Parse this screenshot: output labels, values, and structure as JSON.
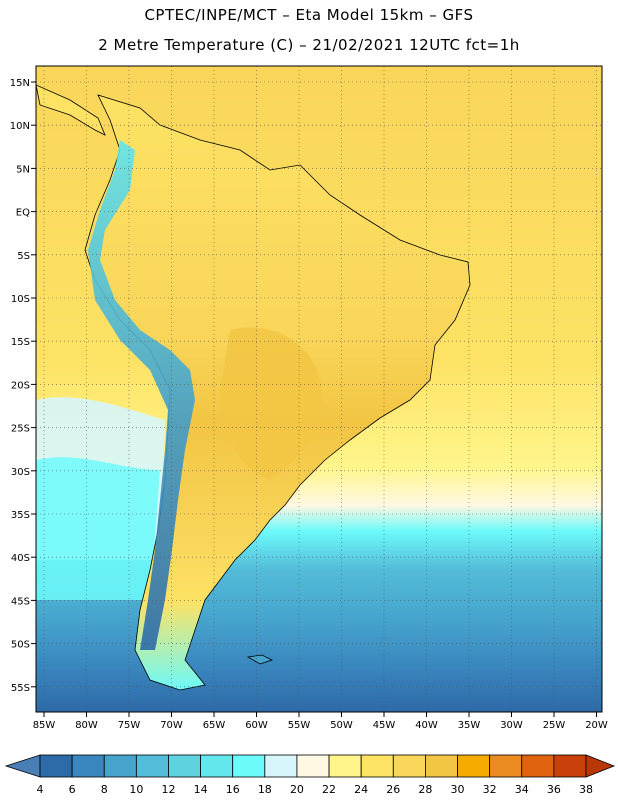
{
  "title": {
    "line1": "CPTEC/INPE/MCT –  Eta Model 15km – GFS",
    "line2": "2 Metre Temperature (C) – 21/02/2021 12UTC fct=1h"
  },
  "lat_labels": [
    "15N",
    "10N",
    "5N",
    "EQ",
    "5S",
    "10S",
    "15S",
    "20S",
    "25S",
    "30S",
    "35S",
    "40S",
    "45S",
    "50S",
    "55S"
  ],
  "lon_labels": [
    "85W",
    "80W",
    "75W",
    "70W",
    "65W",
    "60W",
    "55W",
    "50W",
    "45W",
    "40W",
    "35W",
    "30W",
    "25W",
    "20W"
  ],
  "colorbar": {
    "ticks": [
      "4",
      "6",
      "8",
      "10",
      "12",
      "14",
      "16",
      "18",
      "20",
      "22",
      "24",
      "26",
      "28",
      "30",
      "32",
      "34",
      "36",
      "38"
    ],
    "colors": [
      "#4a7fb5",
      "#2d6aa8",
      "#3a86be",
      "#45a3cc",
      "#53bcd8",
      "#5fd2e0",
      "#63e6ec",
      "#6cfafa",
      "#d6f6fb",
      "#fff8e2",
      "#fff58a",
      "#fde264",
      "#f9d65a",
      "#f2c543",
      "#f5ab00",
      "#ec8a22",
      "#e06410",
      "#c9400a",
      "#b8380a"
    ]
  }
}
